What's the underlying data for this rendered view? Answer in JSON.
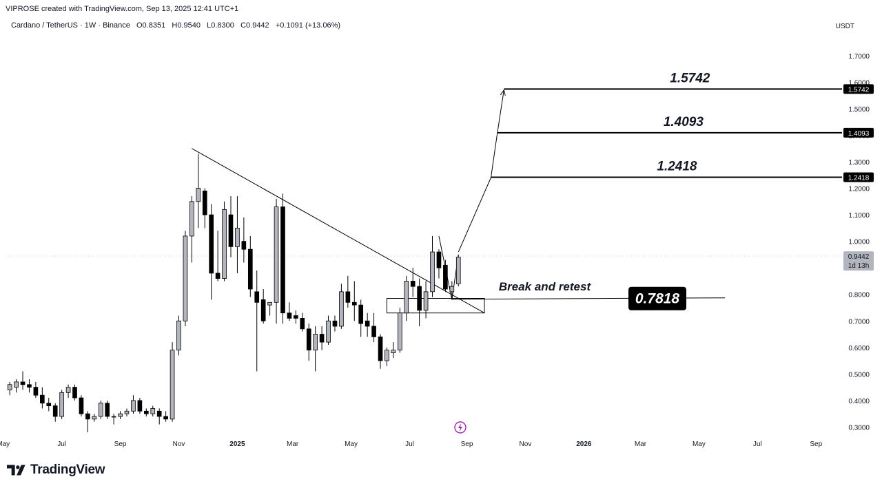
{
  "header": {
    "attribution": "VIPROSE created with TradingView.com, Sep 13, 2025 12:41 UTC+1"
  },
  "symbol_bar": {
    "symbol": "Cardano / TetherUS · 1W · Binance",
    "open": "O0.8351",
    "high": "H0.9540",
    "low": "L0.8300",
    "close": "C0.9442",
    "change": "+0.1091 (+13.06%)"
  },
  "currency_label": "USDT",
  "footer": {
    "brand": "TradingView"
  },
  "chart_data": {
    "type": "candlestick",
    "symbol": "Cardano / TetherUS",
    "interval": "1W",
    "exchange": "Binance",
    "y_axis": {
      "ylim": [
        0.27,
        1.78
      ],
      "ticks": [
        "0.3000",
        "0.4000",
        "0.5000",
        "0.6000",
        "0.7000",
        "0.8000",
        "0.9000",
        "1.0000",
        "1.1000",
        "1.2000",
        "1.3000",
        "1.4000",
        "1.5000",
        "1.6000",
        "1.7000"
      ],
      "position": "right"
    },
    "x_axis": {
      "ticks": [
        {
          "label": "May",
          "week": -1.0,
          "bold": false
        },
        {
          "label": "Jul",
          "week": 8.0,
          "bold": false
        },
        {
          "label": "Sep",
          "week": 17.0,
          "bold": false
        },
        {
          "label": "Nov",
          "week": 26.0,
          "bold": false
        },
        {
          "label": "2025",
          "week": 35.0,
          "bold": true
        },
        {
          "label": "Mar",
          "week": 43.5,
          "bold": false
        },
        {
          "label": "May",
          "week": 52.5,
          "bold": false
        },
        {
          "label": "Jul",
          "week": 61.5,
          "bold": false
        },
        {
          "label": "Sep",
          "week": 70.3,
          "bold": false
        },
        {
          "label": "Nov",
          "week": 79.3,
          "bold": false
        },
        {
          "label": "2026",
          "week": 88.3,
          "bold": true
        },
        {
          "label": "Mar",
          "week": 97.0,
          "bold": false
        },
        {
          "label": "May",
          "week": 106.0,
          "bold": false
        },
        {
          "label": "Jul",
          "week": 115.0,
          "bold": false
        },
        {
          "label": "Sep",
          "week": 124.0,
          "bold": false
        }
      ],
      "xlim": [
        -1.5,
        128.0
      ]
    },
    "candles": [
      {
        "w": 0,
        "o": 0.44,
        "h": 0.47,
        "l": 0.42,
        "c": 0.46
      },
      {
        "w": 1,
        "o": 0.45,
        "h": 0.48,
        "l": 0.43,
        "c": 0.47
      },
      {
        "w": 2,
        "o": 0.47,
        "h": 0.51,
        "l": 0.44,
        "c": 0.46
      },
      {
        "w": 3,
        "o": 0.46,
        "h": 0.48,
        "l": 0.43,
        "c": 0.45
      },
      {
        "w": 4,
        "o": 0.45,
        "h": 0.47,
        "l": 0.41,
        "c": 0.42
      },
      {
        "w": 5,
        "o": 0.42,
        "h": 0.45,
        "l": 0.37,
        "c": 0.39
      },
      {
        "w": 6,
        "o": 0.39,
        "h": 0.41,
        "l": 0.36,
        "c": 0.38
      },
      {
        "w": 7,
        "o": 0.38,
        "h": 0.39,
        "l": 0.32,
        "c": 0.34
      },
      {
        "w": 8,
        "o": 0.34,
        "h": 0.44,
        "l": 0.33,
        "c": 0.43
      },
      {
        "w": 9,
        "o": 0.43,
        "h": 0.46,
        "l": 0.41,
        "c": 0.45
      },
      {
        "w": 10,
        "o": 0.45,
        "h": 0.46,
        "l": 0.4,
        "c": 0.41
      },
      {
        "w": 11,
        "o": 0.41,
        "h": 0.42,
        "l": 0.34,
        "c": 0.35
      },
      {
        "w": 12,
        "o": 0.35,
        "h": 0.36,
        "l": 0.28,
        "c": 0.33
      },
      {
        "w": 13,
        "o": 0.33,
        "h": 0.35,
        "l": 0.32,
        "c": 0.34
      },
      {
        "w": 14,
        "o": 0.34,
        "h": 0.4,
        "l": 0.33,
        "c": 0.39
      },
      {
        "w": 15,
        "o": 0.39,
        "h": 0.4,
        "l": 0.33,
        "c": 0.34
      },
      {
        "w": 16,
        "o": 0.34,
        "h": 0.35,
        "l": 0.31,
        "c": 0.34
      },
      {
        "w": 17,
        "o": 0.34,
        "h": 0.36,
        "l": 0.33,
        "c": 0.35
      },
      {
        "w": 18,
        "o": 0.35,
        "h": 0.37,
        "l": 0.34,
        "c": 0.36
      },
      {
        "w": 19,
        "o": 0.36,
        "h": 0.42,
        "l": 0.35,
        "c": 0.4
      },
      {
        "w": 20,
        "o": 0.4,
        "h": 0.41,
        "l": 0.35,
        "c": 0.36
      },
      {
        "w": 21,
        "o": 0.36,
        "h": 0.37,
        "l": 0.34,
        "c": 0.35
      },
      {
        "w": 22,
        "o": 0.35,
        "h": 0.38,
        "l": 0.34,
        "c": 0.37
      },
      {
        "w": 23,
        "o": 0.36,
        "h": 0.37,
        "l": 0.31,
        "c": 0.34
      },
      {
        "w": 24,
        "o": 0.34,
        "h": 0.36,
        "l": 0.32,
        "c": 0.33
      },
      {
        "w": 25,
        "o": 0.33,
        "h": 0.62,
        "l": 0.32,
        "c": 0.59
      },
      {
        "w": 26,
        "o": 0.59,
        "h": 0.72,
        "l": 0.57,
        "c": 0.7
      },
      {
        "w": 27,
        "o": 0.7,
        "h": 1.04,
        "l": 0.68,
        "c": 1.02
      },
      {
        "w": 28,
        "o": 1.02,
        "h": 1.17,
        "l": 0.92,
        "c": 1.15
      },
      {
        "w": 29,
        "o": 1.15,
        "h": 1.33,
        "l": 1.05,
        "c": 1.2
      },
      {
        "w": 30,
        "o": 1.19,
        "h": 1.2,
        "l": 1.05,
        "c": 1.1
      },
      {
        "w": 31,
        "o": 1.1,
        "h": 1.14,
        "l": 0.78,
        "c": 0.88
      },
      {
        "w": 32,
        "o": 0.88,
        "h": 1.04,
        "l": 0.85,
        "c": 0.86
      },
      {
        "w": 33,
        "o": 0.86,
        "h": 1.15,
        "l": 0.85,
        "c": 1.12
      },
      {
        "w": 34,
        "o": 1.1,
        "h": 1.17,
        "l": 0.94,
        "c": 0.98
      },
      {
        "w": 35,
        "o": 0.98,
        "h": 1.17,
        "l": 0.88,
        "c": 1.05
      },
      {
        "w": 36,
        "o": 1.0,
        "h": 1.09,
        "l": 0.92,
        "c": 0.97
      },
      {
        "w": 37,
        "o": 0.97,
        "h": 1.02,
        "l": 0.79,
        "c": 0.82
      },
      {
        "w": 38,
        "o": 0.81,
        "h": 0.89,
        "l": 0.51,
        "c": 0.77
      },
      {
        "w": 39,
        "o": 0.78,
        "h": 0.82,
        "l": 0.69,
        "c": 0.7
      },
      {
        "w": 40,
        "o": 0.76,
        "h": 0.77,
        "l": 0.72,
        "c": 0.77
      },
      {
        "w": 41,
        "o": 0.77,
        "h": 1.16,
        "l": 0.69,
        "c": 1.13
      },
      {
        "w": 42,
        "o": 1.13,
        "h": 1.18,
        "l": 0.69,
        "c": 0.73
      },
      {
        "w": 43,
        "o": 0.73,
        "h": 0.77,
        "l": 0.7,
        "c": 0.71
      },
      {
        "w": 44,
        "o": 0.72,
        "h": 0.74,
        "l": 0.69,
        "c": 0.71
      },
      {
        "w": 45,
        "o": 0.71,
        "h": 0.73,
        "l": 0.66,
        "c": 0.67
      },
      {
        "w": 46,
        "o": 0.67,
        "h": 0.69,
        "l": 0.55,
        "c": 0.59
      },
      {
        "w": 47,
        "o": 0.59,
        "h": 0.68,
        "l": 0.51,
        "c": 0.65
      },
      {
        "w": 48,
        "o": 0.65,
        "h": 0.68,
        "l": 0.59,
        "c": 0.62
      },
      {
        "w": 49,
        "o": 0.62,
        "h": 0.72,
        "l": 0.61,
        "c": 0.7
      },
      {
        "w": 50,
        "o": 0.7,
        "h": 0.72,
        "l": 0.66,
        "c": 0.68
      },
      {
        "w": 51,
        "o": 0.68,
        "h": 0.84,
        "l": 0.67,
        "c": 0.81
      },
      {
        "w": 52,
        "o": 0.81,
        "h": 0.87,
        "l": 0.75,
        "c": 0.77
      },
      {
        "w": 53,
        "o": 0.77,
        "h": 0.85,
        "l": 0.7,
        "c": 0.76
      },
      {
        "w": 54,
        "o": 0.76,
        "h": 0.78,
        "l": 0.64,
        "c": 0.69
      },
      {
        "w": 55,
        "o": 0.7,
        "h": 0.73,
        "l": 0.64,
        "c": 0.68
      },
      {
        "w": 56,
        "o": 0.68,
        "h": 0.73,
        "l": 0.62,
        "c": 0.64
      },
      {
        "w": 57,
        "o": 0.64,
        "h": 0.65,
        "l": 0.52,
        "c": 0.55
      },
      {
        "w": 58,
        "o": 0.55,
        "h": 0.6,
        "l": 0.53,
        "c": 0.59
      },
      {
        "w": 59,
        "o": 0.58,
        "h": 0.62,
        "l": 0.56,
        "c": 0.59
      },
      {
        "w": 60,
        "o": 0.59,
        "h": 0.75,
        "l": 0.58,
        "c": 0.73
      },
      {
        "w": 61,
        "o": 0.73,
        "h": 0.87,
        "l": 0.7,
        "c": 0.85
      },
      {
        "w": 62,
        "o": 0.85,
        "h": 0.9,
        "l": 0.79,
        "c": 0.83
      },
      {
        "w": 63,
        "o": 0.83,
        "h": 0.86,
        "l": 0.68,
        "c": 0.74
      },
      {
        "w": 64,
        "o": 0.74,
        "h": 0.85,
        "l": 0.71,
        "c": 0.81
      },
      {
        "w": 65,
        "o": 0.81,
        "h": 1.02,
        "l": 0.79,
        "c": 0.96
      },
      {
        "w": 66,
        "o": 0.96,
        "h": 0.97,
        "l": 0.86,
        "c": 0.9
      },
      {
        "w": 67,
        "o": 0.91,
        "h": 0.93,
        "l": 0.81,
        "c": 0.82
      },
      {
        "w": 68,
        "o": 0.81,
        "h": 0.85,
        "l": 0.78,
        "c": 0.83
      },
      {
        "w": 69,
        "o": 0.84,
        "h": 0.95,
        "l": 0.83,
        "c": 0.94
      }
    ],
    "trendline": {
      "from": {
        "w": 28.0,
        "price": 1.35
      },
      "to": {
        "w": 73.0,
        "price": 0.73
      }
    },
    "breakout_box": {
      "w_start": 58.0,
      "w_end": 73.0,
      "price_top": 0.785,
      "price_bottom": 0.73
    },
    "retest_wedge": [
      {
        "w": 66.0,
        "price": 1.02
      },
      {
        "w": 68.0,
        "price": 0.78
      },
      {
        "w": 69.0,
        "price": 0.95
      }
    ],
    "projection_arrow": [
      {
        "w": 69.0,
        "price": 0.96
      },
      {
        "w": 74.0,
        "price": 1.24
      },
      {
        "w": 75.0,
        "price": 1.41
      },
      {
        "w": 76.0,
        "price": 1.57
      }
    ],
    "target_levels": [
      {
        "label": "1.5742",
        "price": 1.5742,
        "w_start": 76.0
      },
      {
        "label": "1.4093",
        "price": 1.4093,
        "w_start": 75.0
      },
      {
        "label": "1.2418",
        "price": 1.2418,
        "w_start": 74.0
      }
    ],
    "support": {
      "label": "0.7818",
      "price": 0.7818,
      "w_start": 68.0,
      "w_end": 110.0
    },
    "annotation": {
      "text": "Break and retest",
      "w": 75.0,
      "price": 0.815
    },
    "current_price": {
      "label": "0.9442",
      "price": 0.9442,
      "countdown": "1d 13h"
    },
    "colors": {
      "up": "#b2b5be",
      "down": "#000000",
      "line": "#000000",
      "axis_text": "#131722",
      "price_tag": "#000000",
      "current_tag": "#b2b5be"
    },
    "grid": false
  }
}
